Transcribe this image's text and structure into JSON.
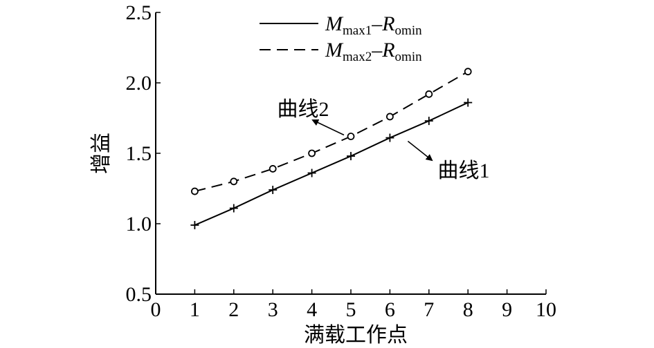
{
  "chart_data": {
    "type": "line",
    "xlabel": "满载工作点",
    "ylabel": "增益",
    "xlim": [
      0,
      10
    ],
    "ylim": [
      0.5,
      2.5
    ],
    "x_ticks": [
      "0",
      "1",
      "2",
      "3",
      "4",
      "5",
      "6",
      "7",
      "8",
      "9",
      "10"
    ],
    "y_ticks": [
      "0.5",
      "1.0",
      "1.5",
      "2.0",
      "2.5"
    ],
    "grid": false,
    "legend_position": "top",
    "series": [
      {
        "legend_main": "M",
        "legend_sub1": "max1",
        "legend_dash": "–",
        "legend_main2": "R",
        "legend_sub2": "omin",
        "line_style": "solid",
        "marker": "plus",
        "x": [
          1,
          2,
          3,
          4,
          5,
          6,
          7,
          8
        ],
        "values": [
          0.99,
          1.11,
          1.24,
          1.36,
          1.48,
          1.61,
          1.73,
          1.86
        ]
      },
      {
        "legend_main": "M",
        "legend_sub1": "max2",
        "legend_dash": "–",
        "legend_main2": "R",
        "legend_sub2": "omin",
        "line_style": "dashed",
        "marker": "circle",
        "x": [
          1,
          2,
          3,
          4,
          5,
          6,
          7,
          8
        ],
        "values": [
          1.23,
          1.3,
          1.39,
          1.5,
          1.62,
          1.76,
          1.92,
          2.08
        ]
      }
    ],
    "annotations": [
      {
        "text": "曲线2",
        "target_series": 1,
        "target_x": 5,
        "target_y": 1.62
      },
      {
        "text": "曲线1",
        "target_series": 0,
        "target_x": 6,
        "target_y": 1.61
      }
    ]
  }
}
